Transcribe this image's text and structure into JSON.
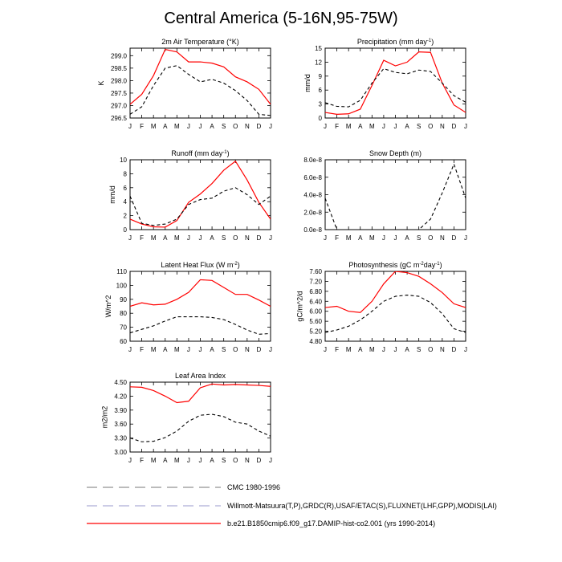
{
  "title": "Central America (5-16N,95-75W)",
  "colors": {
    "model": "#ff0000",
    "obs": "#000000",
    "cmc_legend": "#777777",
    "obs_legend": "#9999cc"
  },
  "legend": [
    {
      "label": "CMC 1980-1996",
      "style": "dash-gray"
    },
    {
      "label": "Willmott-Matsuura(T,P),GRDC(R),USAF/ETAC(S),FLUXNET(LHF,GPP),MODIS(LAI)",
      "style": "dash-blue"
    },
    {
      "label": "b.e21.B1850cmip6.f09_g17.DAMIP-hist-co2.001 (yrs 1990-2014)",
      "style": "solid-red"
    }
  ],
  "chart_data": [
    {
      "type": "line",
      "title": "2m Air Temperature (°K)",
      "ylabel": "K",
      "categories": [
        "J",
        "F",
        "M",
        "A",
        "M",
        "J",
        "J",
        "A",
        "S",
        "O",
        "N",
        "D",
        "J"
      ],
      "yticks": [
        "296.5",
        "297.0",
        "297.5",
        "298.0",
        "298.5",
        "299.0"
      ],
      "ylim": [
        296.5,
        299.3
      ],
      "series": [
        {
          "style": "model",
          "values": [
            297.05,
            297.45,
            298.2,
            299.25,
            299.15,
            298.75,
            298.75,
            298.7,
            298.55,
            298.15,
            297.95,
            297.65,
            297.05
          ]
        },
        {
          "style": "obs",
          "values": [
            296.65,
            296.95,
            297.8,
            298.5,
            298.6,
            298.25,
            297.95,
            298.05,
            297.9,
            297.6,
            297.2,
            296.65,
            296.6
          ]
        }
      ]
    },
    {
      "type": "line",
      "title": "Precipitation (mm day-1)",
      "ylabel": "mm/d",
      "categories": [
        "J",
        "F",
        "M",
        "A",
        "M",
        "J",
        "J",
        "A",
        "S",
        "O",
        "N",
        "D",
        "J"
      ],
      "yticks": [
        "0",
        "3",
        "6",
        "9",
        "12",
        "15"
      ],
      "ylim": [
        0,
        15
      ],
      "series": [
        {
          "style": "model",
          "values": [
            1.2,
            0.8,
            0.9,
            1.9,
            7.0,
            12.4,
            11.2,
            12.0,
            14.2,
            14.1,
            7.5,
            2.8,
            1.2
          ]
        },
        {
          "style": "obs",
          "values": [
            3.3,
            2.5,
            2.4,
            3.8,
            7.5,
            10.6,
            9.8,
            9.5,
            10.3,
            10.0,
            7.5,
            4.8,
            3.4
          ]
        }
      ]
    },
    {
      "type": "line",
      "title": "Runoff (mm day-1)",
      "ylabel": "mm/d",
      "categories": [
        "J",
        "F",
        "M",
        "A",
        "M",
        "J",
        "J",
        "A",
        "S",
        "O",
        "N",
        "D",
        "J"
      ],
      "yticks": [
        "0",
        "2",
        "4",
        "6",
        "8",
        "10"
      ],
      "ylim": [
        0,
        10
      ],
      "series": [
        {
          "style": "model",
          "values": [
            1.5,
            0.8,
            0.4,
            0.35,
            1.3,
            3.9,
            5.1,
            6.6,
            8.5,
            9.8,
            7.1,
            3.9,
            1.5
          ]
        },
        {
          "style": "obs",
          "values": [
            4.8,
            0.9,
            0.6,
            0.8,
            1.5,
            3.6,
            4.3,
            4.5,
            5.5,
            6.0,
            5.0,
            3.6,
            4.8
          ]
        }
      ]
    },
    {
      "type": "line",
      "title": "Snow Depth (m)",
      "ylabel": "",
      "categories": [
        "J",
        "F",
        "M",
        "A",
        "M",
        "J",
        "J",
        "A",
        "S",
        "O",
        "N",
        "D",
        "J"
      ],
      "yticks": [
        "0.0e-8",
        "2.0e-8",
        "4.0e-8",
        "6.0e-8",
        "8.0e-8"
      ],
      "ylim": [
        0,
        8e-08
      ],
      "series": [
        {
          "style": "obs",
          "values": [
            3.6e-08,
            0,
            0,
            0,
            0,
            0,
            0,
            0,
            0,
            1.2e-08,
            4.2e-08,
            7.5e-08,
            3.6e-08
          ]
        }
      ]
    },
    {
      "type": "line",
      "title": "Latent Heat Flux (W m-2)",
      "ylabel": "W/m^2",
      "categories": [
        "J",
        "F",
        "M",
        "A",
        "M",
        "J",
        "J",
        "A",
        "S",
        "O",
        "N",
        "D",
        "J"
      ],
      "yticks": [
        "60",
        "70",
        "80",
        "90",
        "100",
        "110"
      ],
      "ylim": [
        60,
        110
      ],
      "series": [
        {
          "style": "model",
          "values": [
            85,
            87.5,
            86,
            86.5,
            90,
            95,
            104,
            103.5,
            98.5,
            93.5,
            93.5,
            89.5,
            85
          ]
        },
        {
          "style": "obs",
          "values": [
            66,
            68.5,
            71,
            74.5,
            77.5,
            77.5,
            77.5,
            77,
            75.5,
            72,
            68,
            65,
            65.5
          ]
        }
      ]
    },
    {
      "type": "line",
      "title": "Photosynthesis (gC m-2day-1)",
      "ylabel": "gC/m^2/d",
      "categories": [
        "J",
        "F",
        "M",
        "A",
        "M",
        "J",
        "J",
        "A",
        "S",
        "O",
        "N",
        "D",
        "J"
      ],
      "yticks": [
        "4.80",
        "5.20",
        "5.60",
        "6.00",
        "6.40",
        "6.80",
        "7.20",
        "7.60"
      ],
      "ylim": [
        4.8,
        7.6
      ],
      "series": [
        {
          "style": "model",
          "values": [
            6.15,
            6.2,
            6.0,
            5.95,
            6.4,
            7.1,
            7.6,
            7.55,
            7.4,
            7.1,
            6.75,
            6.3,
            6.15
          ]
        },
        {
          "style": "obs",
          "values": [
            5.15,
            5.25,
            5.4,
            5.65,
            6.0,
            6.4,
            6.6,
            6.65,
            6.6,
            6.35,
            5.9,
            5.3,
            5.15
          ]
        }
      ]
    },
    {
      "type": "line",
      "title": "Leaf Area Index",
      "ylabel": "m2/m2",
      "categories": [
        "J",
        "F",
        "M",
        "A",
        "M",
        "J",
        "J",
        "A",
        "S",
        "O",
        "N",
        "D",
        "J"
      ],
      "yticks": [
        "3.00",
        "3.30",
        "3.60",
        "3.90",
        "4.20",
        "4.50"
      ],
      "ylim": [
        3.0,
        4.5
      ],
      "series": [
        {
          "style": "model",
          "values": [
            4.4,
            4.39,
            4.32,
            4.2,
            4.06,
            4.09,
            4.38,
            4.46,
            4.44,
            4.45,
            4.44,
            4.43,
            4.41
          ]
        },
        {
          "style": "obs",
          "values": [
            3.3,
            3.22,
            3.23,
            3.31,
            3.45,
            3.66,
            3.79,
            3.81,
            3.76,
            3.64,
            3.6,
            3.45,
            3.34
          ]
        }
      ]
    }
  ]
}
